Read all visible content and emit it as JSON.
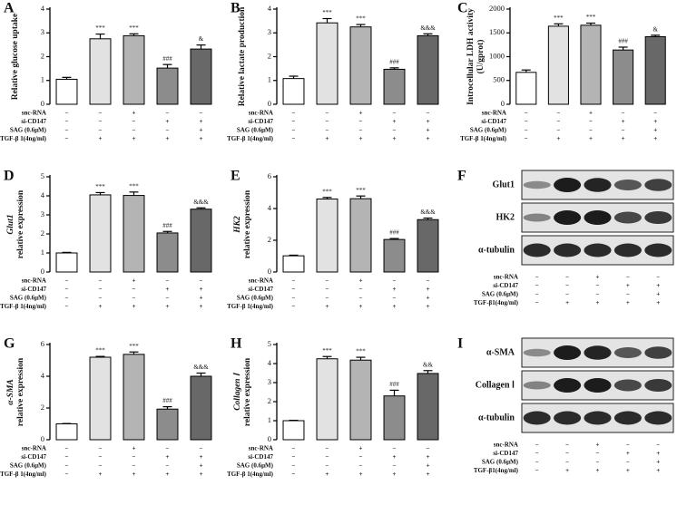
{
  "chart_data": [
    {
      "type": "bar",
      "letter": "A",
      "ylabel": [
        "Relative glucose uptake"
      ],
      "ylabel_italic": false,
      "ylim": [
        0,
        4
      ],
      "yticks": [
        0,
        1,
        2,
        3,
        4
      ],
      "values": [
        1.05,
        2.75,
        2.88,
        1.52,
        2.32
      ],
      "errors": [
        0.08,
        0.2,
        0.08,
        0.15,
        0.17
      ],
      "annotations": [
        "***",
        "***",
        "###",
        "&"
      ],
      "colors": [
        "#ffffff",
        "#e2e2e2",
        "#b4b4b4",
        "#8c8c8c",
        "#686868"
      ],
      "conditions": [
        {
          "label": "snc-RNA",
          "signs": [
            "−",
            "−",
            "+",
            "−",
            "−"
          ]
        },
        {
          "label": "si-CD147",
          "signs": [
            "−",
            "−",
            "−",
            "+",
            "+"
          ]
        },
        {
          "label": "SAG (0.6μM)",
          "signs": [
            "−",
            "−",
            "−",
            "−",
            "+"
          ]
        },
        {
          "label": "TGF-β 1(4ng/ml)",
          "signs": [
            "−",
            "+",
            "+",
            "+",
            "+"
          ]
        }
      ]
    },
    {
      "type": "bar",
      "letter": "B",
      "ylabel": [
        "Relative lactate production"
      ],
      "ylabel_italic": false,
      "ylim": [
        0,
        4
      ],
      "yticks": [
        0,
        1,
        2,
        3,
        4
      ],
      "values": [
        1.08,
        3.42,
        3.25,
        1.47,
        2.88
      ],
      "errors": [
        0.1,
        0.18,
        0.1,
        0.06,
        0.08
      ],
      "annotations": [
        "***",
        "***",
        "###",
        "&&&"
      ],
      "colors": [
        "#ffffff",
        "#e2e2e2",
        "#b4b4b4",
        "#8c8c8c",
        "#686868"
      ],
      "conditions": [
        {
          "label": "snc-RNA",
          "signs": [
            "−",
            "−",
            "+",
            "−",
            "−"
          ]
        },
        {
          "label": "si-CD147",
          "signs": [
            "−",
            "−",
            "−",
            "+",
            "+"
          ]
        },
        {
          "label": "SAG (0.6μM)",
          "signs": [
            "−",
            "−",
            "−",
            "−",
            "+"
          ]
        },
        {
          "label": "TGF-β 1(4ng/ml)",
          "signs": [
            "−",
            "+",
            "+",
            "+",
            "+"
          ]
        }
      ]
    },
    {
      "type": "bar",
      "letter": "C",
      "ylabel": [
        "Introcellular LDH activity",
        "(U/gprot)"
      ],
      "ylabel_italic": false,
      "ylim": [
        0,
        2000
      ],
      "yticks": [
        0,
        500,
        1000,
        1500,
        2000
      ],
      "values": [
        670,
        1640,
        1660,
        1140,
        1420
      ],
      "errors": [
        50,
        50,
        45,
        60,
        30
      ],
      "annotations": [
        "***",
        "***",
        "###",
        "&"
      ],
      "colors": [
        "#ffffff",
        "#e2e2e2",
        "#b4b4b4",
        "#8c8c8c",
        "#686868"
      ],
      "conditions": [
        {
          "label": "snc-RNA",
          "signs": [
            "−",
            "−",
            "+",
            "−",
            "−"
          ]
        },
        {
          "label": "si-CD147",
          "signs": [
            "−",
            "−",
            "−",
            "+",
            "+"
          ]
        },
        {
          "label": "SAG (0.6μM)",
          "signs": [
            "−",
            "−",
            "−",
            "−",
            "+"
          ]
        },
        {
          "label": "TGF-β 1(4ng/ml)",
          "signs": [
            "−",
            "+",
            "+",
            "+",
            "+"
          ]
        }
      ]
    },
    {
      "type": "bar",
      "letter": "D",
      "ylabel": [
        "Glut1",
        "relative expression"
      ],
      "ylabel_italic": true,
      "ylim": [
        0,
        5
      ],
      "yticks": [
        0,
        1,
        2,
        3,
        4,
        5
      ],
      "values": [
        1,
        4.05,
        4.02,
        2.05,
        3.3
      ],
      "errors": [
        0.03,
        0.12,
        0.18,
        0.08,
        0.07
      ],
      "annotations": [
        "***",
        "***",
        "###",
        "&&&"
      ],
      "colors": [
        "#ffffff",
        "#e2e2e2",
        "#b4b4b4",
        "#8c8c8c",
        "#686868"
      ],
      "conditions": [
        {
          "label": "snc-RNA",
          "signs": [
            "−",
            "−",
            "+",
            "−",
            "−"
          ]
        },
        {
          "label": "si-CD147",
          "signs": [
            "−",
            "−",
            "−",
            "+",
            "+"
          ]
        },
        {
          "label": "SAG (0.6μM)",
          "signs": [
            "−",
            "−",
            "−",
            "−",
            "+"
          ]
        },
        {
          "label": "TGF-β 1(4ng/ml)",
          "signs": [
            "−",
            "+",
            "+",
            "+",
            "+"
          ]
        }
      ]
    },
    {
      "type": "bar",
      "letter": "E",
      "ylabel": [
        "HK2",
        "relative expression"
      ],
      "ylabel_italic": true,
      "ylim": [
        0,
        6
      ],
      "yticks": [
        0,
        2,
        4,
        6
      ],
      "values": [
        1.02,
        4.6,
        4.62,
        2.05,
        3.3
      ],
      "errors": [
        0.04,
        0.1,
        0.17,
        0.06,
        0.1
      ],
      "annotations": [
        "***",
        "***",
        "###",
        "&&&"
      ],
      "colors": [
        "#ffffff",
        "#e2e2e2",
        "#b4b4b4",
        "#8c8c8c",
        "#686868"
      ],
      "conditions": [
        {
          "label": "snc-RNA",
          "signs": [
            "−",
            "−",
            "+",
            "−",
            "−"
          ]
        },
        {
          "label": "si-CD147",
          "signs": [
            "−",
            "−",
            "−",
            "+",
            "+"
          ]
        },
        {
          "label": "SAG (0.6μM)",
          "signs": [
            "−",
            "−",
            "−",
            "−",
            "+"
          ]
        },
        {
          "label": "TGF-β 1(4ng/ml)",
          "signs": [
            "−",
            "+",
            "+",
            "+",
            "+"
          ]
        }
      ]
    },
    {
      "type": "bar",
      "letter": "G",
      "ylabel": [
        "α-SMA",
        "relative expression"
      ],
      "ylabel_italic": true,
      "ylim": [
        0,
        6
      ],
      "yticks": [
        0,
        2,
        4,
        6
      ],
      "values": [
        1,
        5.2,
        5.38,
        1.93,
        4.0
      ],
      "errors": [
        0.02,
        0.05,
        0.15,
        0.15,
        0.2
      ],
      "annotations": [
        "***",
        "***",
        "###",
        "&&&"
      ],
      "colors": [
        "#ffffff",
        "#e2e2e2",
        "#b4b4b4",
        "#8c8c8c",
        "#686868"
      ],
      "conditions": [
        {
          "label": "snc-RNA",
          "signs": [
            "−",
            "−",
            "+",
            "−",
            "−"
          ]
        },
        {
          "label": "si-CD147",
          "signs": [
            "−",
            "−",
            "−",
            "+",
            "+"
          ]
        },
        {
          "label": "SAG (0.6μM)",
          "signs": [
            "−",
            "−",
            "−",
            "−",
            "+"
          ]
        },
        {
          "label": "TGF-β 1(4ng/ml)",
          "signs": [
            "−",
            "+",
            "+",
            "+",
            "+"
          ]
        }
      ]
    },
    {
      "type": "bar",
      "letter": "H",
      "ylabel": [
        "Collagen Ⅰ",
        "relative expression"
      ],
      "ylabel_italic": true,
      "ylim": [
        0,
        5
      ],
      "yticks": [
        0,
        1,
        2,
        3,
        4,
        5
      ],
      "values": [
        1,
        4.25,
        4.18,
        2.3,
        3.48
      ],
      "errors": [
        0.02,
        0.12,
        0.15,
        0.3,
        0.15
      ],
      "annotations": [
        "***",
        "***",
        "###",
        "&&"
      ],
      "colors": [
        "#ffffff",
        "#e2e2e2",
        "#b4b4b4",
        "#8c8c8c",
        "#686868"
      ],
      "conditions": [
        {
          "label": "snc-RNA",
          "signs": [
            "−",
            "−",
            "+",
            "−",
            "−"
          ]
        },
        {
          "label": "si-CD147",
          "signs": [
            "−",
            "−",
            "−",
            "+",
            "+"
          ]
        },
        {
          "label": "SAG (0.6μM)",
          "signs": [
            "−",
            "−",
            "−",
            "−",
            "+"
          ]
        },
        {
          "label": "TGF-β 1(4ng/ml)",
          "signs": [
            "−",
            "+",
            "+",
            "+",
            "+"
          ]
        }
      ]
    }
  ],
  "blots": [
    {
      "letter": "F",
      "bands": [
        "Glut1",
        "HK2",
        "α-tubulin"
      ],
      "conditions": [
        {
          "label": "snc-RNA",
          "signs": [
            "−",
            "−",
            "+",
            "−",
            "−"
          ]
        },
        {
          "label": "si-CD147",
          "signs": [
            "−",
            "−",
            "−",
            "+",
            "+"
          ]
        },
        {
          "label": "SAG (0.6μM)",
          "signs": [
            "−",
            "−",
            "−",
            "−",
            "+"
          ]
        },
        {
          "label": "TGF-β1(4ng/ml)",
          "signs": [
            "−",
            "+",
            "+",
            "+",
            "+"
          ]
        }
      ]
    },
    {
      "letter": "I",
      "bands": [
        "α-SMA",
        "Collagen Ⅰ",
        "α-tubulin"
      ],
      "conditions": [
        {
          "label": "snc-RNA",
          "signs": [
            "−",
            "−",
            "+",
            "−",
            "−"
          ]
        },
        {
          "label": "si-CD147",
          "signs": [
            "−",
            "−",
            "−",
            "+",
            "+"
          ]
        },
        {
          "label": "SAG (0.6μM)",
          "signs": [
            "−",
            "−",
            "−",
            "−",
            "+"
          ]
        },
        {
          "label": "TGF-β1(4ng/ml)",
          "signs": [
            "−",
            "+",
            "+",
            "+",
            "+"
          ]
        }
      ]
    }
  ]
}
